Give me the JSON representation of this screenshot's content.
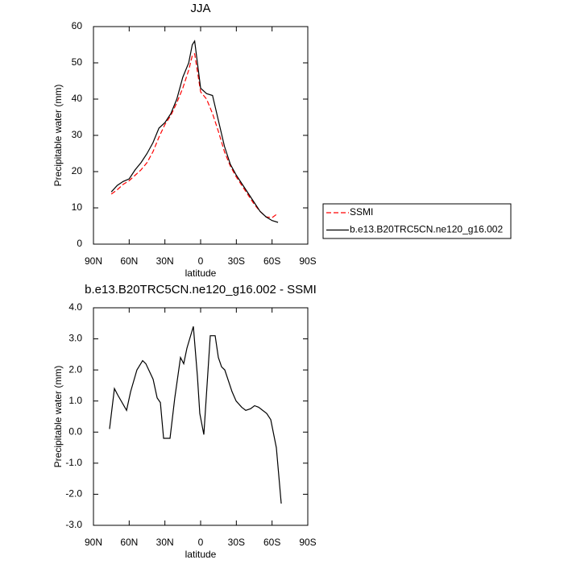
{
  "chart_data": [
    {
      "type": "line",
      "title": "JJA",
      "x_label": "latitude",
      "y_label": "Precipitable water (mm)",
      "x": [
        75,
        70,
        65,
        60,
        55,
        50,
        45,
        40,
        35,
        30,
        25,
        20,
        15,
        10,
        7,
        5,
        0,
        -5,
        -10,
        -15,
        -20,
        -25,
        -30,
        -35,
        -40,
        -45,
        -50,
        -55,
        -60,
        -65
      ],
      "series": [
        {
          "name": "SSMI",
          "color": "#ff0000",
          "dashed": true,
          "values": [
            13.8,
            15,
            16.5,
            17.5,
            19,
            20.5,
            22.5,
            25.5,
            29.5,
            33,
            35.5,
            39,
            43,
            48,
            52,
            52.5,
            42,
            40,
            36,
            31,
            25.5,
            21.5,
            18.5,
            16,
            13.5,
            11,
            9,
            7.5,
            7.3,
            8.5
          ]
        },
        {
          "name": "b.e13.B20TRC5CN.ne120_g16.002",
          "color": "#000000",
          "dashed": false,
          "values": [
            14.4,
            16.2,
            17.3,
            18,
            20.5,
            22.5,
            25,
            28,
            32,
            33.5,
            36,
            40,
            46,
            50,
            55,
            56,
            43,
            41.5,
            41,
            34,
            27,
            22,
            19,
            16.5,
            14,
            11.5,
            9,
            7.5,
            6.5,
            6
          ]
        }
      ],
      "xlim": [
        90,
        -90
      ],
      "xticks": [
        {
          "value": 90,
          "label": "90N"
        },
        {
          "value": 60,
          "label": "60N"
        },
        {
          "value": 30,
          "label": "30N"
        },
        0,
        {
          "value": -30,
          "label": "30S"
        },
        {
          "value": -60,
          "label": "60S"
        },
        {
          "value": -90,
          "label": "90S"
        }
      ],
      "ylim": [
        0,
        60
      ],
      "yticks": [
        0,
        10,
        20,
        30,
        40,
        50,
        60
      ],
      "legend": "right"
    },
    {
      "type": "line",
      "title": "b.e13.B20TRC5CN.ne120_g16.002 - SSMI",
      "x_label": "latitude",
      "y_label": "Precipitable water (mm)",
      "x": [
        76.5,
        72.4,
        69.7,
        62.2,
        58.8,
        53.5,
        48.7,
        46,
        39.9,
        36.5,
        33.8,
        31.1,
        25.7,
        21.7,
        16.9,
        14.2,
        11.5,
        6.1,
        2.7,
        0.7,
        -2.7,
        -8.1,
        -12.2,
        -14.9,
        -17.6,
        -20.3,
        -26.4,
        -29.8,
        -34.5,
        -37.9,
        -41.9,
        -45.3,
        -48.7,
        -55.5,
        -58.9,
        -63.6,
        -67.7
      ],
      "series": [
        {
          "color": "#000000",
          "dashed": false,
          "values": [
            0.1,
            1.4,
            1.2,
            0.7,
            1.3,
            2.0,
            2.3,
            2.2,
            1.7,
            1.1,
            0.95,
            -0.2,
            -0.2,
            1.1,
            2.4,
            2.2,
            2.7,
            3.4,
            1.8,
            0.6,
            -0.08,
            3.1,
            3.1,
            2.4,
            2.1,
            2.0,
            1.3,
            1.0,
            0.8,
            0.7,
            0.75,
            0.85,
            0.8,
            0.6,
            0.4,
            -0.5,
            -2.3
          ]
        }
      ],
      "xlim": [
        90,
        -90
      ],
      "xticks": [
        {
          "value": 90,
          "label": "90N"
        },
        {
          "value": 60,
          "label": "60N"
        },
        {
          "value": 30,
          "label": "30N"
        },
        0,
        {
          "value": -30,
          "label": "30S"
        },
        {
          "value": -60,
          "label": "60S"
        },
        {
          "value": -90,
          "label": "90S"
        }
      ],
      "ylim": [
        -3,
        4
      ],
      "yticks": [
        {
          "value": -3,
          "label": "-3.0"
        },
        {
          "value": -2,
          "label": "-2.0"
        },
        {
          "value": -1,
          "label": "-1.0"
        },
        {
          "value": 0,
          "label": "0.0"
        },
        {
          "value": 1,
          "label": "1.0"
        },
        {
          "value": 2,
          "label": "2.0"
        },
        {
          "value": 3,
          "label": "3.0"
        },
        {
          "value": 4,
          "label": "4.0"
        }
      ]
    }
  ]
}
